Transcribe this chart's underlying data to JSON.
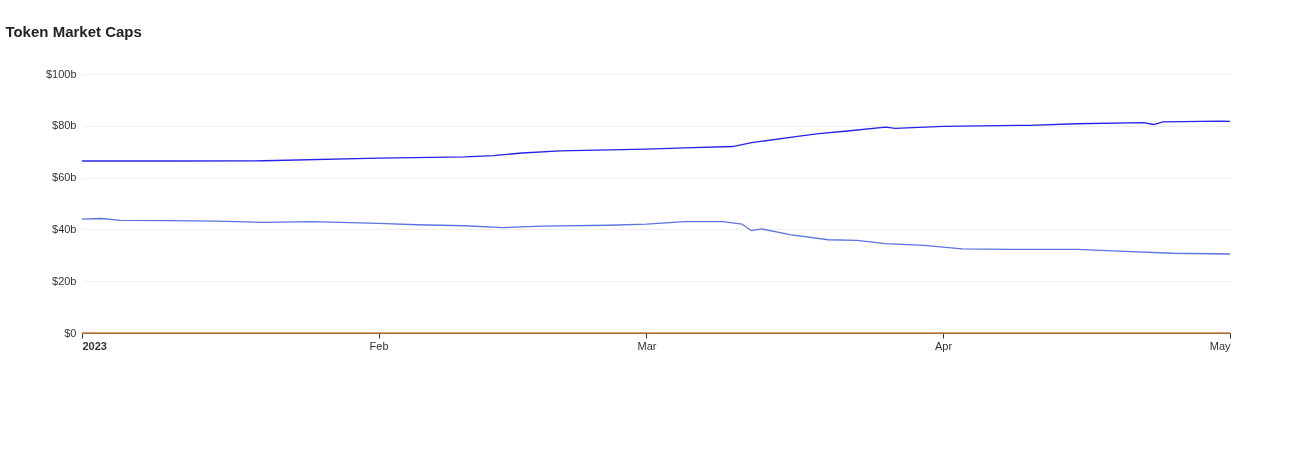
{
  "chart_data": {
    "type": "line",
    "title": "Token Market Caps",
    "xlim": [
      "2023-01-01",
      "2023-05-01"
    ],
    "xticks": [
      {
        "value": "2023-01-01",
        "label": "2023"
      },
      {
        "value": "2023-02-01",
        "label": "Feb"
      },
      {
        "value": "2023-03-01",
        "label": "Mar"
      },
      {
        "value": "2023-04-01",
        "label": "Apr"
      },
      {
        "value": "2023-05-01",
        "label": "May"
      }
    ],
    "ylim": [
      0,
      100
    ],
    "yticks": [
      {
        "value": 0,
        "label": "$0"
      },
      {
        "value": 20,
        "label": "$20b"
      },
      {
        "value": 40,
        "label": "$40b"
      },
      {
        "value": 60,
        "label": "$60b"
      },
      {
        "value": 80,
        "label": "$80b"
      },
      {
        "value": 100,
        "label": "$100b"
      }
    ],
    "grid": "y",
    "legend": false,
    "marker": "none",
    "line_style": "solid",
    "series": [
      {
        "color": "#2424e8",
        "x": [
          "2023-01-01",
          "2023-01-10",
          "2023-01-20",
          "2023-02-01",
          "2023-02-10",
          "2023-02-13",
          "2023-02-16",
          "2023-02-20",
          "2023-03-01",
          "2023-03-05",
          "2023-03-10",
          "2023-03-12",
          "2023-03-17",
          "2023-03-19",
          "2023-03-22",
          "2023-03-26",
          "2023-03-27",
          "2023-04-01",
          "2023-04-10",
          "2023-04-15",
          "2023-04-22",
          "2023-04-23",
          "2023-04-24",
          "2023-04-30",
          "2023-05-01"
        ],
        "values": [
          66.4,
          66.4,
          66.5,
          67.5,
          68,
          68.5,
          69.5,
          70.3,
          71,
          71.5,
          72,
          73.5,
          76,
          77,
          78,
          79.5,
          79,
          79.8,
          80.2,
          80.8,
          81.2,
          80.5,
          81.5,
          81.8,
          81.7
        ]
      },
      {
        "color": "#5b74e0",
        "x": [
          "2023-01-01",
          "2023-01-03",
          "2023-01-05",
          "2023-01-10",
          "2023-01-15",
          "2023-01-20",
          "2023-01-25",
          "2023-02-01",
          "2023-02-05",
          "2023-02-10",
          "2023-02-14",
          "2023-02-18",
          "2023-02-25",
          "2023-03-01",
          "2023-03-05",
          "2023-03-09",
          "2023-03-11",
          "2023-03-12",
          "2023-03-13",
          "2023-03-16",
          "2023-03-20",
          "2023-03-23",
          "2023-03-26",
          "2023-03-30",
          "2023-04-03",
          "2023-04-08",
          "2023-04-15",
          "2023-04-20",
          "2023-04-25",
          "2023-05-01"
        ],
        "values": [
          44,
          44.2,
          43.5,
          43.4,
          43.2,
          42.7,
          43,
          42.3,
          41.8,
          41.4,
          40.7,
          41.3,
          41.6,
          42,
          43,
          43,
          42,
          39.5,
          40.2,
          38,
          36,
          35.8,
          34.5,
          33.8,
          32.5,
          32.3,
          32.3,
          31.5,
          30.8,
          30.5
        ]
      },
      {
        "color": "#c8823a",
        "x": [
          "2023-01-01",
          "2023-05-01"
        ],
        "values": [
          0,
          0
        ]
      }
    ]
  }
}
